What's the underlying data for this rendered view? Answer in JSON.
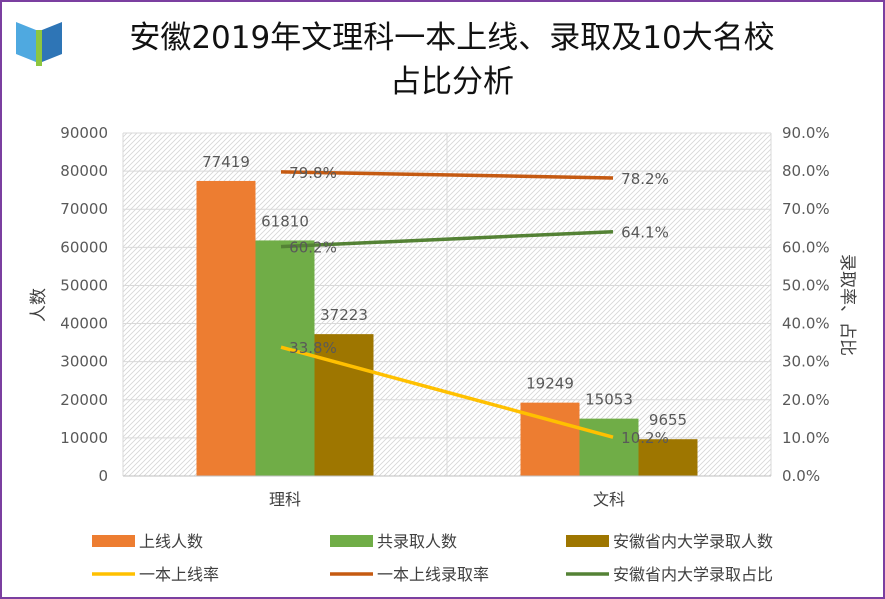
{
  "title_line1": "安徽2019年文理科一本上线、录取及10大名校",
  "title_line2": "占比分析",
  "colors": {
    "online": "#ED7D31",
    "admitted": "#70AD47",
    "in_province": "#9E7600",
    "rate_online": "#FFC000",
    "rate_admit": "#C55A11",
    "rate_in_province": "#548235",
    "frame": "#7B3FA0"
  },
  "chart_data": {
    "type": "bar",
    "categories": [
      "理科",
      "文科"
    ],
    "ylabel": "人数",
    "y2label": "录取率、占比",
    "ylim": [
      0,
      90000
    ],
    "y2lim": [
      0,
      0.9
    ],
    "yticks": [
      "0",
      "10000",
      "20000",
      "30000",
      "40000",
      "50000",
      "60000",
      "70000",
      "80000",
      "90000"
    ],
    "y2ticks": [
      "0.0%",
      "10.0%",
      "20.0%",
      "30.0%",
      "40.0%",
      "50.0%",
      "60.0%",
      "70.0%",
      "80.0%",
      "90.0%"
    ],
    "grid": true,
    "legend_position": "bottom",
    "series": [
      {
        "name": "上线人数",
        "type": "bar",
        "axis": "left",
        "values": [
          77419,
          19249
        ],
        "labels": [
          "77419",
          "19249"
        ]
      },
      {
        "name": "共录取人数",
        "type": "bar",
        "axis": "left",
        "values": [
          61810,
          15053
        ],
        "labels": [
          "61810",
          "15053"
        ]
      },
      {
        "name": "安徽省内大学录取人数",
        "type": "bar",
        "axis": "left",
        "values": [
          37223,
          9655
        ],
        "labels": [
          "37223",
          "9655"
        ]
      },
      {
        "name": "一本上线率",
        "type": "line",
        "axis": "right",
        "values": [
          0.338,
          0.102
        ],
        "labels": [
          "33.8%",
          "10.2%"
        ]
      },
      {
        "name": "一本上线录取率",
        "type": "line",
        "axis": "right",
        "values": [
          0.798,
          0.782
        ],
        "labels": [
          "79.8%",
          "78.2%"
        ]
      },
      {
        "name": "安徽省内大学录取占比",
        "type": "line",
        "axis": "right",
        "values": [
          0.602,
          0.641
        ],
        "labels": [
          "60.2%",
          "64.1%"
        ]
      }
    ]
  }
}
